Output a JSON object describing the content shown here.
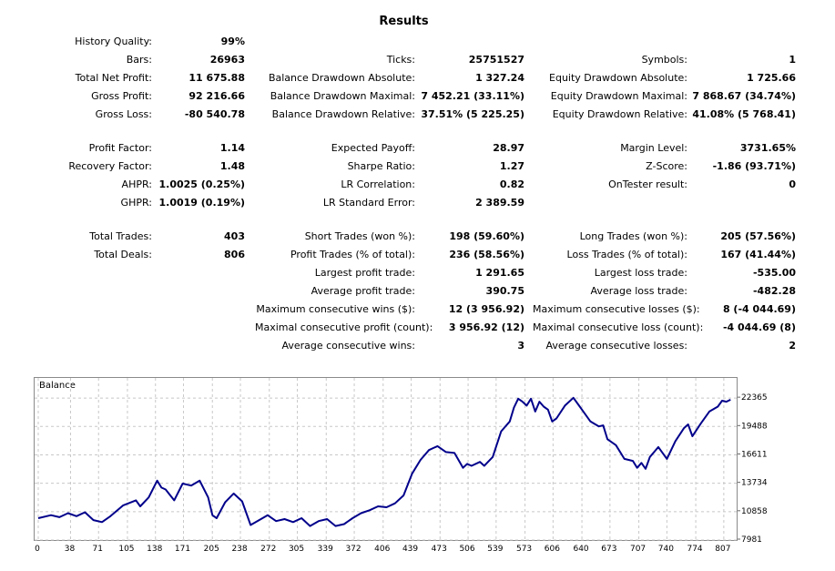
{
  "report": {
    "title": "Results"
  },
  "rows": [
    {
      "y": 39,
      "c1": [
        "History Quality:",
        "99%"
      ],
      "c2": null,
      "c3": null
    },
    {
      "y": 59,
      "c1": [
        "Bars:",
        "26963"
      ],
      "c2": [
        "Ticks:",
        "25751527"
      ],
      "c3": [
        "Symbols:",
        "1"
      ]
    },
    {
      "y": 79,
      "c1": [
        "Total Net Profit:",
        "11 675.88"
      ],
      "c2": [
        "Balance Drawdown Absolute:",
        "1 327.24"
      ],
      "c3": [
        "Equity Drawdown Absolute:",
        "1 725.66"
      ]
    },
    {
      "y": 99,
      "c1": [
        "Gross Profit:",
        "92 216.66"
      ],
      "c2": [
        "Balance Drawdown Maximal:",
        "7 452.21 (33.11%)"
      ],
      "c3": [
        "Equity Drawdown Maximal:",
        "7 868.67 (34.74%)"
      ]
    },
    {
      "y": 119,
      "c1": [
        "Gross Loss:",
        "-80 540.78"
      ],
      "c2": [
        "Balance Drawdown Relative:",
        "37.51% (5 225.25)"
      ],
      "c3": [
        "Equity Drawdown Relative:",
        "41.08% (5 768.41)"
      ]
    },
    {
      "y": 156,
      "c1": [
        "Profit Factor:",
        "1.14"
      ],
      "c2": [
        "Expected Payoff:",
        "28.97"
      ],
      "c3": [
        "Margin Level:",
        "3731.65%"
      ]
    },
    {
      "y": 176,
      "c1": [
        "Recovery Factor:",
        "1.48"
      ],
      "c2": [
        "Sharpe Ratio:",
        "1.27"
      ],
      "c3": [
        "Z-Score:",
        "-1.86 (93.71%)"
      ]
    },
    {
      "y": 196,
      "c1": [
        "AHPR:",
        "1.0025 (0.25%)"
      ],
      "c2": [
        "LR Correlation:",
        "0.82"
      ],
      "c3": [
        "OnTester result:",
        "0"
      ]
    },
    {
      "y": 216,
      "c1": [
        "GHPR:",
        "1.0019 (0.19%)"
      ],
      "c2": [
        "LR Standard Error:",
        "2 389.59"
      ],
      "c3": null
    },
    {
      "y": 253,
      "c1": [
        "Total Trades:",
        "403"
      ],
      "c2": [
        "Short Trades (won %):",
        "198 (59.60%)"
      ],
      "c3": [
        "Long Trades (won %):",
        "205 (57.56%)"
      ]
    },
    {
      "y": 273,
      "c1": [
        "Total Deals:",
        "806"
      ],
      "c2": [
        "Profit Trades (% of total):",
        "236 (58.56%)"
      ],
      "c3": [
        "Loss Trades (% of total):",
        "167 (41.44%)"
      ]
    },
    {
      "y": 293,
      "c1": null,
      "c2": [
        "Largest profit trade:",
        "1 291.65"
      ],
      "c3": [
        "Largest loss trade:",
        "-535.00"
      ]
    },
    {
      "y": 313,
      "c1": null,
      "c2": [
        "Average profit trade:",
        "390.75"
      ],
      "c3": [
        "Average loss trade:",
        "-482.28"
      ]
    },
    {
      "y": 333,
      "c1": null,
      "c2": [
        "Maximum consecutive wins ($):",
        "12 (3 956.92)"
      ],
      "c3": [
        "Maximum consecutive losses ($):",
        "8 (-4 044.69)"
      ]
    },
    {
      "y": 353,
      "c1": null,
      "c2": [
        "Maximal consecutive profit (count):",
        "3 956.92 (12)"
      ],
      "c3": [
        "Maximal consecutive loss (count):",
        "-4 044.69 (8)"
      ]
    },
    {
      "y": 373,
      "c1": null,
      "c2": [
        "Average consecutive wins:",
        "3"
      ],
      "c3": [
        "Average consecutive losses:",
        "2"
      ]
    }
  ],
  "chart_data": {
    "type": "line",
    "title": "Balance",
    "color": "#00008b",
    "xlim": [
      0,
      820
    ],
    "ylim": [
      7981,
      23300
    ],
    "x_ticks": [
      0,
      38,
      71,
      105,
      138,
      171,
      205,
      238,
      272,
      305,
      339,
      372,
      406,
      439,
      473,
      506,
      539,
      573,
      606,
      640,
      673,
      707,
      740,
      774,
      807
    ],
    "y_ticks": [
      7981,
      10858,
      13734,
      16611,
      19488,
      22365
    ],
    "grid": true,
    "series": [
      {
        "x": [
          0,
          15,
          25,
          35,
          45,
          55,
          65,
          75,
          85,
          100,
          115,
          120,
          130,
          140,
          145,
          150,
          160,
          170,
          180,
          190,
          200,
          205,
          210,
          220,
          230,
          240,
          250,
          260,
          270,
          280,
          290,
          300,
          310,
          320,
          330,
          340,
          350,
          360,
          370,
          380,
          390,
          400,
          410,
          420,
          430,
          440,
          450,
          460,
          465,
          470,
          480,
          490,
          500,
          505,
          510,
          520,
          525,
          535,
          545,
          555,
          560,
          565,
          570,
          575,
          580,
          585,
          590,
          595,
          600,
          605,
          610,
          620,
          630,
          640,
          650,
          660,
          665,
          670,
          680,
          690,
          700,
          705,
          710,
          715,
          720,
          730,
          740,
          750,
          760,
          765,
          770,
          780,
          790,
          800,
          805,
          810,
          815
        ],
        "y": [
          10200,
          10500,
          10300,
          10700,
          10400,
          10800,
          10000,
          9800,
          10400,
          11500,
          12000,
          11400,
          12300,
          14000,
          13300,
          13100,
          12000,
          13700,
          13500,
          14000,
          12300,
          10500,
          10200,
          11800,
          12700,
          11900,
          9500,
          10000,
          10500,
          9900,
          10100,
          9800,
          10200,
          9400,
          9900,
          10100,
          9400,
          9600,
          10200,
          10700,
          11000,
          11400,
          11300,
          11700,
          12500,
          14700,
          16100,
          17100,
          17300,
          17500,
          16900,
          16800,
          15300,
          15700,
          15500,
          15900,
          15500,
          16400,
          19000,
          20000,
          21400,
          22300,
          22000,
          21600,
          22300,
          21000,
          22000,
          21500,
          21200,
          20000,
          20300,
          21600,
          22400,
          21200,
          20000,
          19500,
          19600,
          18200,
          17600,
          16200,
          16000,
          15300,
          15800,
          15200,
          16400,
          17400,
          16200,
          18000,
          19300,
          19700,
          18500,
          19800,
          21000,
          21500,
          22100,
          22000,
          22200
        ]
      }
    ]
  }
}
